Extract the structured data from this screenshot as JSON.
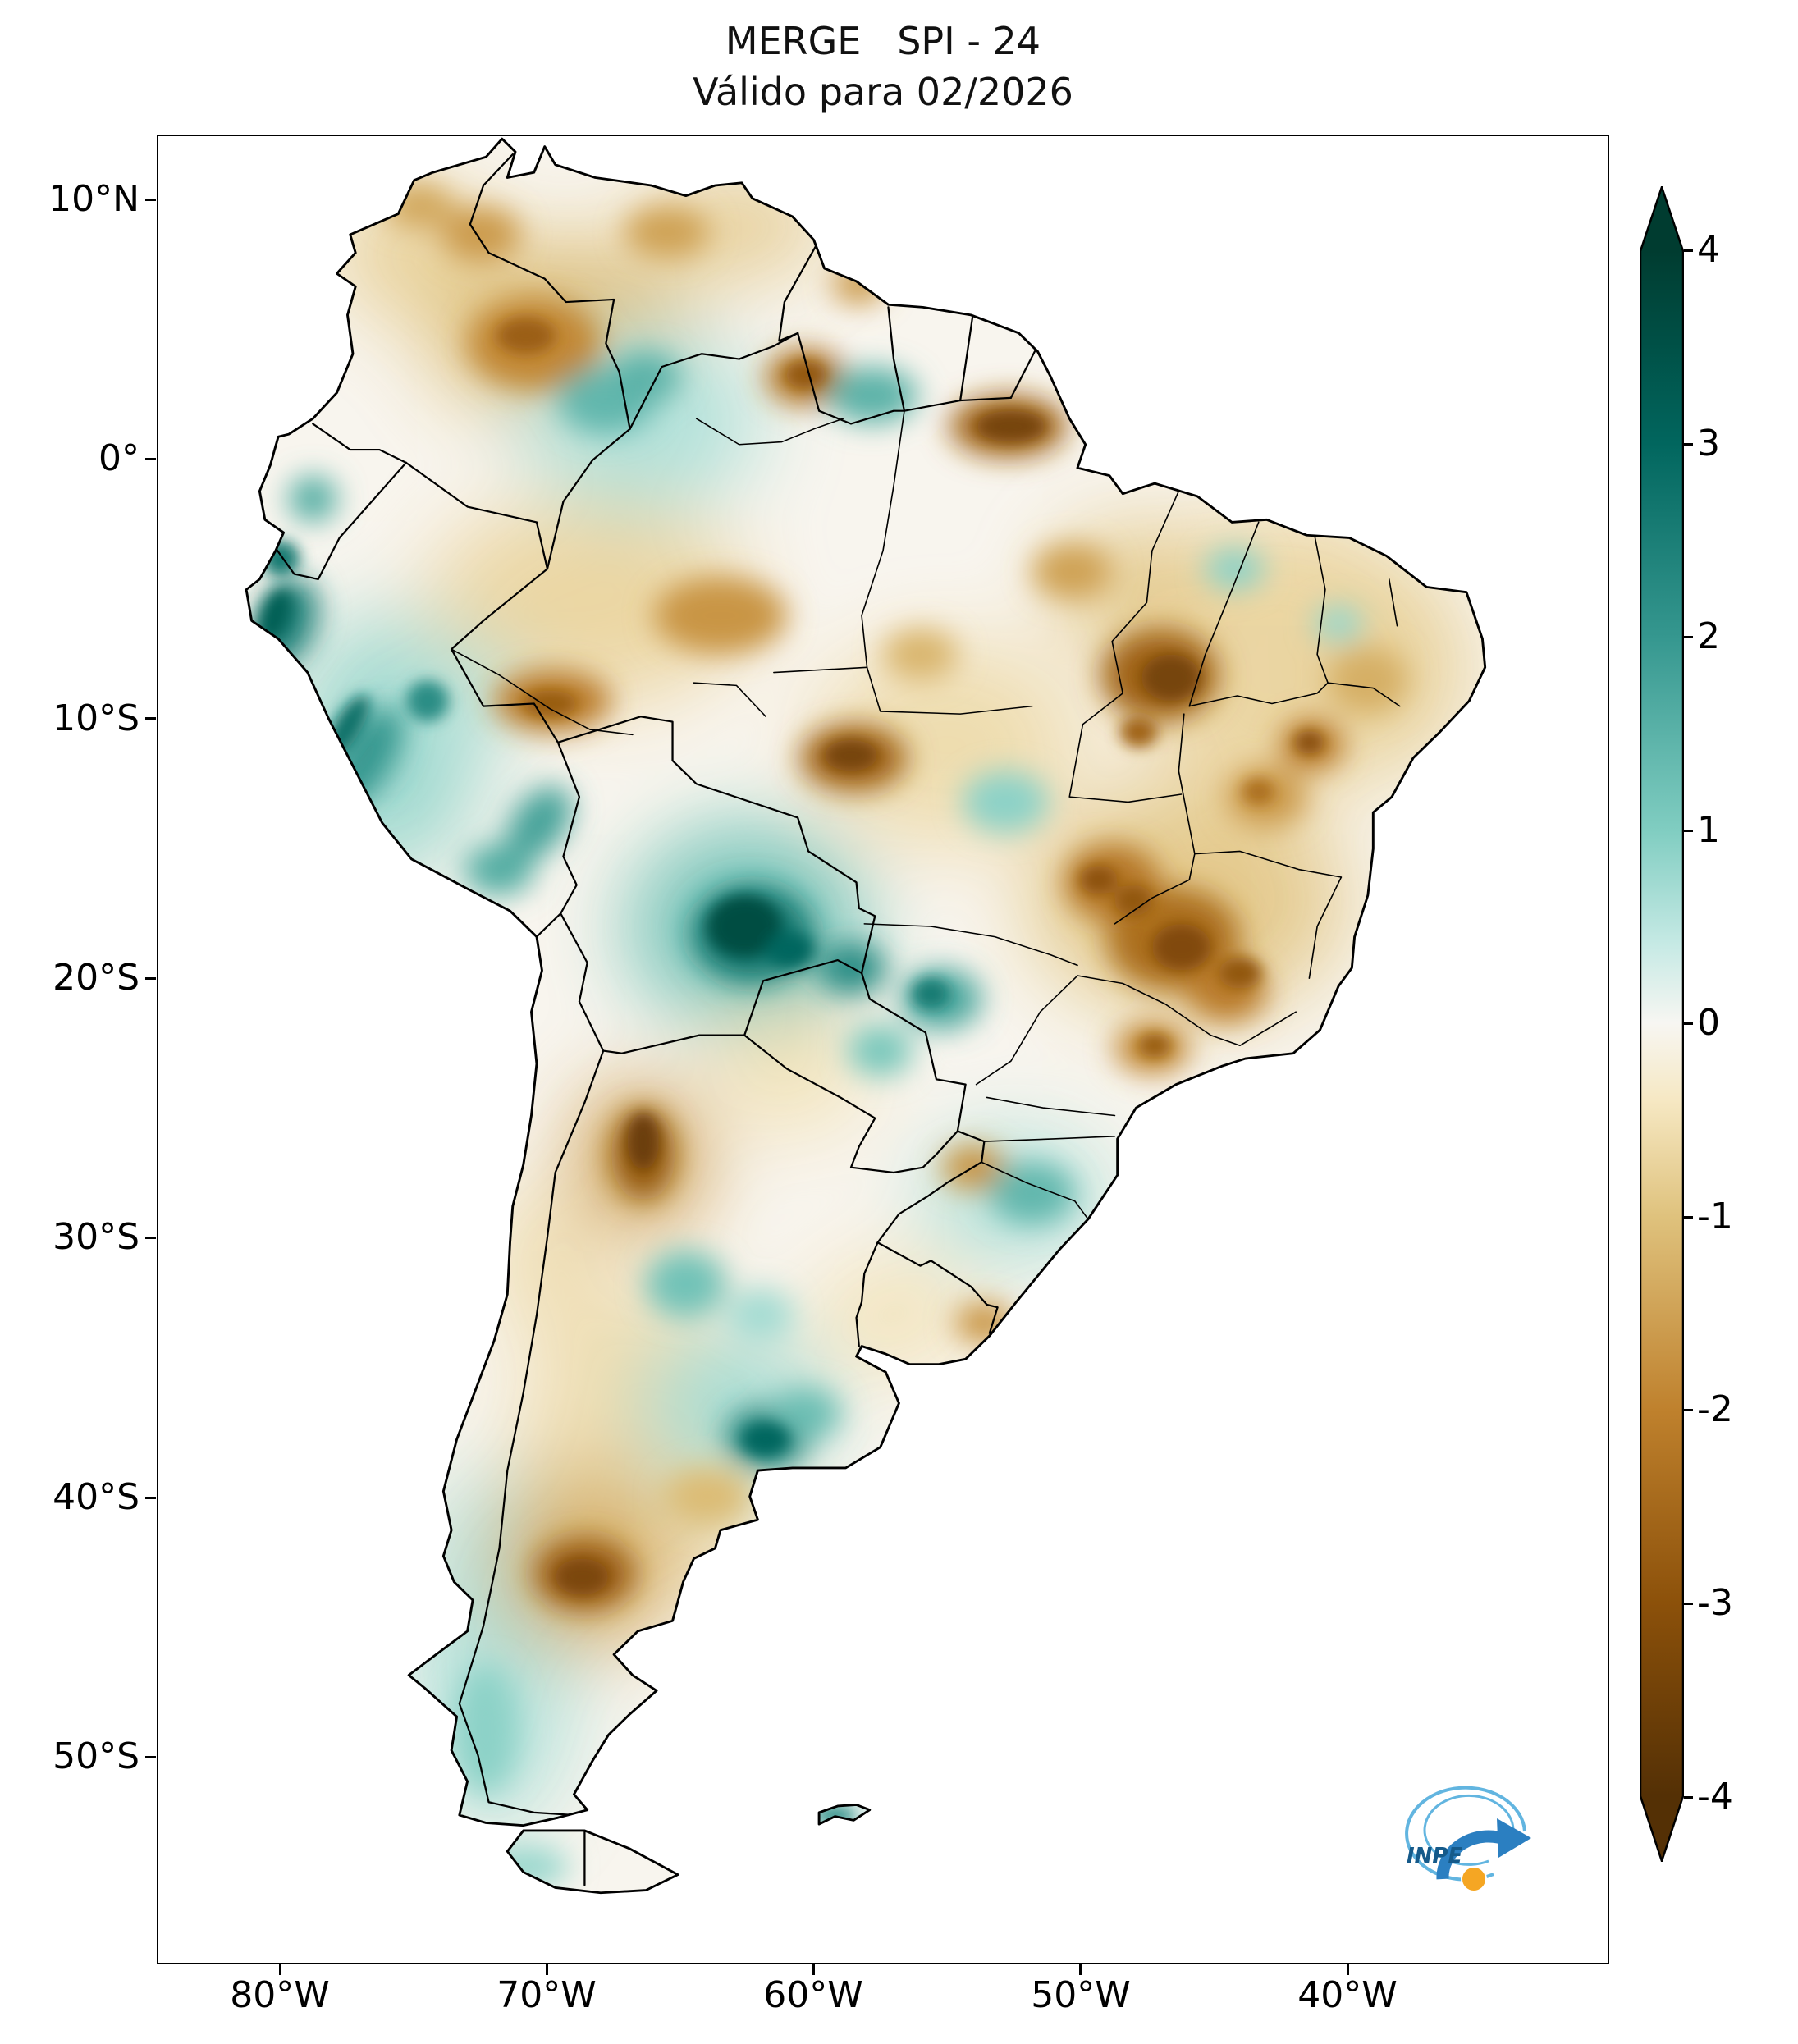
{
  "title": {
    "line1": "MERGE   SPI - 24",
    "line2": "Válido para 02/2026"
  },
  "axes": {
    "y_ticks": [
      "10°N",
      "0°",
      "10°S",
      "20°S",
      "30°S",
      "40°S",
      "50°S"
    ],
    "x_ticks": [
      "80°W",
      "70°W",
      "60°W",
      "50°W",
      "40°W"
    ]
  },
  "colorbar": {
    "ticks": [
      "4",
      "3",
      "2",
      "1",
      "0",
      "-1",
      "-2",
      "-3",
      "-4"
    ],
    "vmin": -4,
    "vmax": 4,
    "over_color": "#003c30",
    "under_color": "#543005"
  },
  "logo": {
    "text": "INPE",
    "arrow_color": "#2b7fc1",
    "swirl_color": "#62b5e0",
    "globe_color": "#f5a623",
    "text_color": "#155a8a"
  },
  "chart_data": {
    "type": "heatmap",
    "title": "MERGE   SPI - 24",
    "subtitle": "Válido para 02/2026",
    "index": "SPI-24 (24-month Standardized Precipitation Index)",
    "valid_for": "02/2026",
    "region": "South America",
    "lon_range": [
      "85°W",
      "30°W"
    ],
    "lat_range": [
      "58°S",
      "12.5°N"
    ],
    "value_range": [
      -4,
      4
    ],
    "colorbar_ticks": [
      4,
      3,
      2,
      1,
      0,
      -1,
      -2,
      -3,
      -4
    ],
    "colormap": "BrBG (brown = dry anomaly, teal-green = wet anomaly, white = neutral)",
    "colormap_stops": [
      [
        4,
        "#003c30"
      ],
      [
        3,
        "#01665e"
      ],
      [
        2,
        "#35978f"
      ],
      [
        1,
        "#80cdc1"
      ],
      [
        0.4,
        "#c7eae5"
      ],
      [
        0,
        "#f7f6f2"
      ],
      [
        -0.4,
        "#f6e8c3"
      ],
      [
        -1,
        "#dfc27d"
      ],
      [
        -2,
        "#bf812d"
      ],
      [
        -3,
        "#8c510a"
      ],
      [
        -4,
        "#543005"
      ]
    ],
    "summary": [
      "Strong wet anomalies (SPI +2 to +4): eastern Bolivia and Pantanal (~62°W 18°S), northern Peru coast and Andes, Buenos Aires province (~62°W 38°S), Mato Grosso do Sul (~55°W 21°S)",
      "Moderate wet anomalies (+1 to +2): NW Amazon / upper Rio Negro, southern Guyana, southern Brazil (RS/SC), southern Chile and Patagonia, Falkland Islands",
      "Strong dry anomalies (-2.5 to -4): Amapá / lower Amazon (~52°W 1°N), Maranhão–Tocantins (~47°W 8°S), northern Mato Grosso (~58°W 11°S), Goiás–Minas Gerais (~46°W 17–20°S), NW Argentina (~66°W 26°S), Chubut (~68°W 43°S), Roraima–Guyana border",
      "Moderate dry anomalies (-1 to -2): Colombian–Venezuelan llanos, central Amazonas, eastern Pará, interior NE Brazil, São Paulo, southern Rio Grande do Sul, central-western Argentina",
      "Near-neutral (-1 to +1, pale tan to white): most remaining areas"
    ],
    "field_blobs": [
      {
        "layer": "wash",
        "lon": -42.5,
        "lat": -7.5,
        "rx": 6.0,
        "ry": 5.5,
        "v": -0.7
      },
      {
        "layer": "wash",
        "lon": -46.0,
        "lat": -17.0,
        "rx": 6.0,
        "ry": 4.5,
        "v": -0.9
      },
      {
        "layer": "wash",
        "lon": -68.5,
        "lat": -5.5,
        "rx": 6.0,
        "ry": 4.0,
        "v": -0.7
      },
      {
        "layer": "wash",
        "lon": -69.5,
        "lat": 5.0,
        "rx": 5.0,
        "ry": 3.5,
        "v": -1.1
      },
      {
        "layer": "wash",
        "lon": -66.0,
        "lat": -38.0,
        "rx": 5.0,
        "ry": 6.0,
        "v": -0.6
      },
      {
        "layer": "wash",
        "lon": -55.0,
        "lat": -11.0,
        "rx": 5.0,
        "ry": 4.0,
        "v": -0.6
      },
      {
        "layer": "wash",
        "lon": -72.0,
        "lat": -46.0,
        "rx": 3.0,
        "ry": 7.0,
        "v": 0.6
      },
      {
        "layer": "wash",
        "lon": -62.5,
        "lat": -18.0,
        "rx": 4.5,
        "ry": 4.0,
        "v": 1.2
      },
      {
        "layer": "wash",
        "lon": -66.5,
        "lat": 1.5,
        "rx": 4.5,
        "ry": 3.5,
        "v": 0.6
      },
      {
        "layer": "wash",
        "lon": -76.0,
        "lat": -11.0,
        "rx": 3.5,
        "ry": 5.0,
        "v": 0.8
      },
      {
        "layer": "wash",
        "lon": -52.5,
        "lat": -28.5,
        "rx": 3.5,
        "ry": 2.5,
        "v": 0.6
      },
      {
        "layer": "wash",
        "lon": -63.0,
        "lat": -36.5,
        "rx": 3.5,
        "ry": 3.0,
        "v": 0.7
      },
      {
        "layer": "wash",
        "lon": -68.5,
        "lat": -42.5,
        "rx": 3.5,
        "ry": 3.5,
        "v": -1.3
      },
      {
        "layer": "wash",
        "lon": -66.5,
        "lat": -27.0,
        "rx": 2.5,
        "ry": 3.0,
        "v": -1.5
      },
      {
        "layer": "wash",
        "lon": -61.0,
        "lat": -23.5,
        "rx": 3.0,
        "ry": 2.5,
        "v": -0.5
      },
      {
        "layer": "wash",
        "lon": -75.0,
        "lat": 8.0,
        "rx": 3.0,
        "ry": 2.5,
        "v": -0.8
      },
      {
        "layer": "wash",
        "lon": -63.0,
        "lat": 9.0,
        "rx": 3.5,
        "ry": 1.8,
        "v": -0.9
      },
      {
        "layer": "wash",
        "lon": -38.5,
        "lat": -8.0,
        "rx": 3.0,
        "ry": 4.0,
        "v": -0.8
      },
      {
        "layer": "wash",
        "lon": -57.0,
        "lat": -33.0,
        "rx": 3.0,
        "ry": 2.2,
        "v": -0.5
      },
      {
        "layer": "wash",
        "lon": -70.0,
        "lat": -31.0,
        "rx": 2.0,
        "ry": 3.0,
        "v": -0.6
      },
      {
        "layer": "wash",
        "lon": -48.0,
        "lat": -5.0,
        "rx": 3.0,
        "ry": 2.5,
        "v": -0.9
      },
      {
        "layer": "wash",
        "lon": -73.5,
        "lat": -9.0,
        "rx": 2.5,
        "ry": 2.0,
        "v": 0.6
      },
      {
        "layer": "mid",
        "lon": -52.7,
        "lat": 1.3,
        "rx": 2.2,
        "ry": 1.2,
        "v": -2.6
      },
      {
        "layer": "mid",
        "lon": -47.0,
        "lat": -8.3,
        "rx": 2.2,
        "ry": 1.8,
        "v": -2.6
      },
      {
        "layer": "mid",
        "lon": -58.5,
        "lat": -11.5,
        "rx": 2.0,
        "ry": 1.3,
        "v": -2.6
      },
      {
        "layer": "mid",
        "lon": -46.5,
        "lat": -18.5,
        "rx": 2.5,
        "ry": 2.0,
        "v": -2.4
      },
      {
        "layer": "mid",
        "lon": -48.8,
        "lat": -16.3,
        "rx": 1.8,
        "ry": 1.5,
        "v": -2.2
      },
      {
        "layer": "mid",
        "lon": -70.5,
        "lat": 4.5,
        "rx": 2.5,
        "ry": 1.8,
        "v": -1.9
      },
      {
        "layer": "mid",
        "lon": -60.3,
        "lat": 3.2,
        "rx": 1.5,
        "ry": 1.1,
        "v": -2.3
      },
      {
        "layer": "mid",
        "lon": -63.5,
        "lat": -6.0,
        "rx": 2.5,
        "ry": 1.5,
        "v": -1.7
      },
      {
        "layer": "mid",
        "lon": -69.8,
        "lat": -9.3,
        "rx": 2.2,
        "ry": 1.2,
        "v": -2.1
      },
      {
        "layer": "mid",
        "lon": -66.4,
        "lat": -26.8,
        "rx": 1.2,
        "ry": 1.8,
        "v": -2.8
      },
      {
        "layer": "mid",
        "lon": -68.6,
        "lat": -43.0,
        "rx": 1.9,
        "ry": 1.4,
        "v": -2.7
      },
      {
        "layer": "mid",
        "lon": -41.3,
        "lat": -11.0,
        "rx": 1.2,
        "ry": 1.0,
        "v": -2.1
      },
      {
        "layer": "mid",
        "lon": -44.5,
        "lat": -20.5,
        "rx": 1.5,
        "ry": 1.2,
        "v": -2.1
      },
      {
        "layer": "mid",
        "lon": -47.3,
        "lat": -22.7,
        "rx": 1.4,
        "ry": 1.0,
        "v": -1.9
      },
      {
        "layer": "mid",
        "lon": -54.0,
        "lat": -27.3,
        "rx": 1.2,
        "ry": 0.9,
        "v": -1.7
      },
      {
        "layer": "mid",
        "lon": -53.6,
        "lat": -33.3,
        "rx": 1.1,
        "ry": 0.8,
        "v": -1.7
      },
      {
        "layer": "mid",
        "lon": -72.5,
        "lat": 8.7,
        "rx": 1.5,
        "ry": 1.1,
        "v": -1.6
      },
      {
        "layer": "mid",
        "lon": -74.8,
        "lat": 9.8,
        "rx": 1.3,
        "ry": 0.9,
        "v": -1.4
      },
      {
        "layer": "mid",
        "lon": -65.5,
        "lat": 8.8,
        "rx": 1.6,
        "ry": 1.0,
        "v": -1.5
      },
      {
        "layer": "mid",
        "lon": -50.3,
        "lat": -4.3,
        "rx": 1.5,
        "ry": 1.1,
        "v": -1.5
      },
      {
        "layer": "mid",
        "lon": -39.2,
        "lat": -8.5,
        "rx": 1.5,
        "ry": 1.3,
        "v": -1.3
      },
      {
        "layer": "mid",
        "lon": -43.0,
        "lat": -13.0,
        "rx": 1.5,
        "ry": 1.2,
        "v": -1.6
      },
      {
        "layer": "mid",
        "lon": -58.3,
        "lat": 6.8,
        "rx": 1.0,
        "ry": 0.8,
        "v": -1.6
      },
      {
        "layer": "mid",
        "lon": -56.0,
        "lat": -7.5,
        "rx": 1.4,
        "ry": 1.0,
        "v": -1.2
      },
      {
        "layer": "mid",
        "lon": -64.0,
        "lat": -40.0,
        "rx": 1.6,
        "ry": 1.1,
        "v": -1.1
      },
      {
        "layer": "mid",
        "lon": -62.3,
        "lat": -18.3,
        "rx": 2.3,
        "ry": 1.9,
        "v": 2.6
      },
      {
        "layer": "mid",
        "lon": -58.6,
        "lat": -19.6,
        "rx": 1.3,
        "ry": 1.0,
        "v": 2.2
      },
      {
        "layer": "mid",
        "lon": -79.8,
        "lat": -6.3,
        "rx": 1.1,
        "ry": 1.8,
        "v": 2.4,
        "rot": 20
      },
      {
        "layer": "mid",
        "lon": -76.8,
        "lat": -11.5,
        "rx": 1.0,
        "ry": 2.2,
        "v": 2.0,
        "rot": 30
      },
      {
        "layer": "mid",
        "lon": -71.8,
        "lat": -15.8,
        "rx": 1.3,
        "ry": 1.0,
        "v": 1.6
      },
      {
        "layer": "mid",
        "lon": -70.3,
        "lat": -14.0,
        "rx": 1.0,
        "ry": 1.6,
        "v": 1.8,
        "rot": 35
      },
      {
        "layer": "mid",
        "lon": -67.8,
        "lat": 2.3,
        "rx": 1.8,
        "ry": 1.3,
        "v": 1.4
      },
      {
        "layer": "mid",
        "lon": -57.8,
        "lat": 2.5,
        "rx": 1.7,
        "ry": 1.1,
        "v": 1.5
      },
      {
        "layer": "mid",
        "lon": -66.3,
        "lat": 3.2,
        "rx": 1.3,
        "ry": 1.0,
        "v": 1.5
      },
      {
        "layer": "mid",
        "lon": -61.7,
        "lat": -37.7,
        "rx": 1.6,
        "ry": 1.2,
        "v": 2.3
      },
      {
        "layer": "mid",
        "lon": -64.8,
        "lat": -31.8,
        "rx": 1.5,
        "ry": 1.3,
        "v": 1.2
      },
      {
        "layer": "mid",
        "lon": -51.8,
        "lat": -28.3,
        "rx": 1.6,
        "ry": 1.2,
        "v": 1.4
      },
      {
        "layer": "mid",
        "lon": -55.2,
        "lat": -20.8,
        "rx": 1.5,
        "ry": 1.2,
        "v": 1.7
      },
      {
        "layer": "mid",
        "lon": -52.8,
        "lat": -13.2,
        "rx": 1.6,
        "ry": 1.2,
        "v": 0.9
      },
      {
        "layer": "mid",
        "lon": -72.3,
        "lat": -49.0,
        "rx": 1.2,
        "ry": 2.5,
        "v": 0.9
      },
      {
        "layer": "mid",
        "lon": -70.8,
        "lat": -54.3,
        "rx": 1.6,
        "ry": 0.8,
        "v": 0.8
      },
      {
        "layer": "mid",
        "lon": -44.2,
        "lat": -4.2,
        "rx": 1.1,
        "ry": 0.8,
        "v": 0.9
      },
      {
        "layer": "mid",
        "lon": -40.3,
        "lat": -6.3,
        "rx": 0.9,
        "ry": 0.7,
        "v": 0.8
      },
      {
        "layer": "mid",
        "lon": -62.0,
        "lat": -33.0,
        "rx": 1.2,
        "ry": 1.0,
        "v": 0.7
      },
      {
        "layer": "mid",
        "lon": -60.3,
        "lat": -36.8,
        "rx": 1.3,
        "ry": 1.0,
        "v": 1.3
      },
      {
        "layer": "mid",
        "lon": -57.5,
        "lat": -22.8,
        "rx": 1.2,
        "ry": 1.0,
        "v": 1.1
      },
      {
        "layer": "mid",
        "lon": -78.8,
        "lat": -1.5,
        "rx": 0.9,
        "ry": 0.9,
        "v": 1.6
      },
      {
        "layer": "core",
        "lon": -62.6,
        "lat": -18.0,
        "rx": 1.4,
        "ry": 1.2,
        "v": 3.6
      },
      {
        "layer": "core",
        "lon": -60.9,
        "lat": -18.9,
        "rx": 0.9,
        "ry": 0.7,
        "v": 3.0
      },
      {
        "layer": "core",
        "lon": -80.2,
        "lat": -6.0,
        "rx": 0.55,
        "ry": 1.1,
        "v": 3.2,
        "rot": 20
      },
      {
        "layer": "core",
        "lon": -77.5,
        "lat": -10.3,
        "rx": 0.5,
        "ry": 1.4,
        "v": 2.8,
        "rot": 30
      },
      {
        "layer": "core",
        "lon": -80.0,
        "lat": -3.8,
        "rx": 0.7,
        "ry": 0.7,
        "v": 2.6
      },
      {
        "layer": "core",
        "lon": -61.8,
        "lat": -37.8,
        "rx": 0.9,
        "ry": 0.65,
        "v": 3.0
      },
      {
        "layer": "core",
        "lon": -74.5,
        "lat": -9.3,
        "rx": 0.8,
        "ry": 0.8,
        "v": 2.2
      },
      {
        "layer": "core",
        "lon": -55.6,
        "lat": -20.6,
        "rx": 0.7,
        "ry": 0.6,
        "v": 2.6
      },
      {
        "layer": "core",
        "lon": -59.2,
        "lat": -52.3,
        "rx": 0.8,
        "ry": 0.35,
        "v": 2.2
      },
      {
        "layer": "core",
        "lon": -46.6,
        "lat": -8.4,
        "rx": 1.1,
        "ry": 0.9,
        "v": -3.4
      },
      {
        "layer": "core",
        "lon": -52.6,
        "lat": 1.3,
        "rx": 1.3,
        "ry": 0.6,
        "v": -3.4
      },
      {
        "layer": "core",
        "lon": -58.6,
        "lat": -11.4,
        "rx": 1.0,
        "ry": 0.6,
        "v": -3.4
      },
      {
        "layer": "core",
        "lon": -46.2,
        "lat": -18.8,
        "rx": 1.1,
        "ry": 0.9,
        "v": -3.2
      },
      {
        "layer": "core",
        "lon": -66.4,
        "lat": -26.3,
        "rx": 0.6,
        "ry": 1.1,
        "v": -3.6
      },
      {
        "layer": "core",
        "lon": -68.7,
        "lat": -43.1,
        "rx": 1.0,
        "ry": 0.7,
        "v": -3.3
      },
      {
        "layer": "core",
        "lon": -70.8,
        "lat": 4.8,
        "rx": 1.1,
        "ry": 0.7,
        "v": -2.7
      },
      {
        "layer": "core",
        "lon": -48.0,
        "lat": -17.0,
        "rx": 0.7,
        "ry": 0.6,
        "v": -2.9
      },
      {
        "layer": "core",
        "lon": -49.3,
        "lat": -16.2,
        "rx": 0.7,
        "ry": 0.55,
        "v": -3.0
      },
      {
        "layer": "core",
        "lon": -44.0,
        "lat": -19.8,
        "rx": 0.8,
        "ry": 0.6,
        "v": -2.9
      },
      {
        "layer": "core",
        "lon": -41.4,
        "lat": -10.9,
        "rx": 0.55,
        "ry": 0.45,
        "v": -3.1
      },
      {
        "layer": "core",
        "lon": -69.9,
        "lat": -9.4,
        "rx": 1.0,
        "ry": 0.5,
        "v": -2.8
      },
      {
        "layer": "core",
        "lon": -47.2,
        "lat": -22.6,
        "rx": 0.6,
        "ry": 0.45,
        "v": -2.8
      },
      {
        "layer": "core",
        "lon": -43.3,
        "lat": -12.8,
        "rx": 0.6,
        "ry": 0.5,
        "v": -2.4
      },
      {
        "layer": "core",
        "lon": -60.3,
        "lat": 3.3,
        "rx": 0.75,
        "ry": 0.5,
        "v": -2.9
      },
      {
        "layer": "core",
        "lon": -47.8,
        "lat": -10.5,
        "rx": 0.7,
        "ry": 0.6,
        "v": -2.6
      }
    ]
  }
}
